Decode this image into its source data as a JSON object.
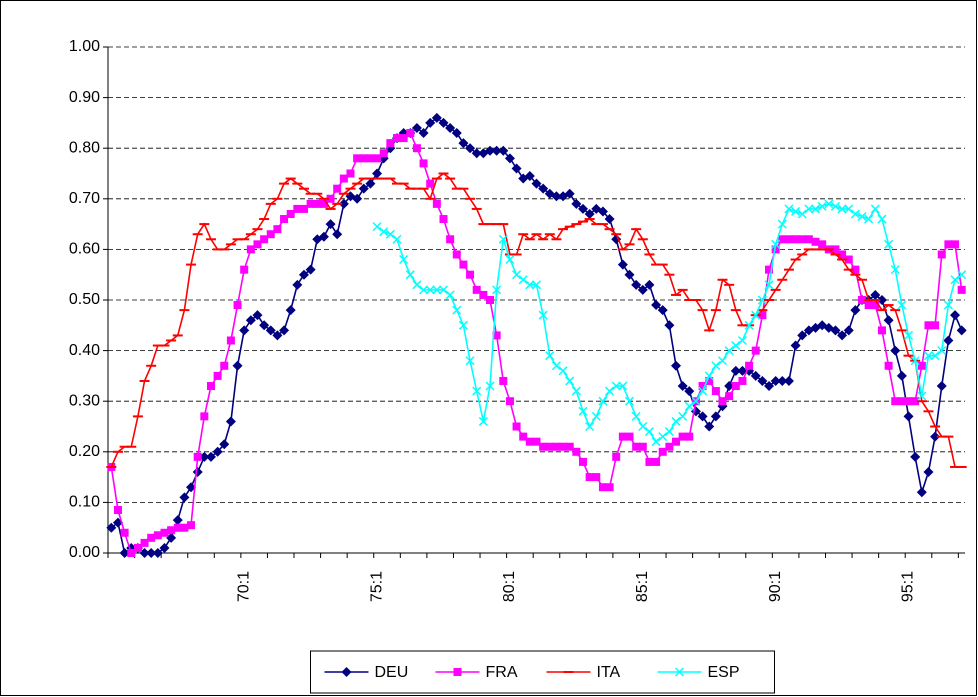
{
  "chart_data": {
    "type": "line",
    "categories": [
      null,
      null,
      null,
      null,
      null,
      null,
      null,
      null,
      null,
      null,
      null,
      null,
      null,
      null,
      null,
      null,
      null,
      null,
      null,
      null,
      "70:1",
      null,
      null,
      null,
      null,
      null,
      null,
      null,
      null,
      null,
      null,
      null,
      null,
      null,
      null,
      null,
      null,
      null,
      null,
      null,
      "75:1",
      null,
      null,
      null,
      null,
      null,
      null,
      null,
      null,
      null,
      null,
      null,
      null,
      null,
      null,
      null,
      null,
      null,
      null,
      null,
      "80:1",
      null,
      null,
      null,
      null,
      null,
      null,
      null,
      null,
      null,
      null,
      null,
      null,
      null,
      null,
      null,
      null,
      null,
      null,
      null,
      "85:1",
      null,
      null,
      null,
      null,
      null,
      null,
      null,
      null,
      null,
      null,
      null,
      null,
      null,
      null,
      null,
      null,
      null,
      null,
      null,
      "90:1",
      null,
      null,
      null,
      null,
      null,
      null,
      null,
      null,
      null,
      null,
      null,
      null,
      null,
      null,
      null,
      null,
      null,
      null,
      null,
      "95:1",
      null,
      null,
      null,
      null,
      null,
      null,
      null,
      null
    ],
    "series": [
      {
        "name": "DEU",
        "color": "#000080",
        "marker": "diamond",
        "values": [
          0.05,
          0.06,
          0.0,
          0.01,
          0.01,
          0.0,
          0.0,
          0.0,
          0.01,
          0.03,
          0.065,
          0.11,
          0.13,
          0.16,
          0.19,
          0.19,
          0.2,
          0.215,
          0.26,
          0.37,
          0.44,
          0.46,
          0.47,
          0.45,
          0.44,
          0.43,
          0.44,
          0.48,
          0.53,
          0.55,
          0.56,
          0.62,
          0.625,
          0.65,
          0.63,
          0.69,
          0.705,
          0.7,
          0.72,
          0.73,
          0.75,
          0.78,
          0.8,
          0.82,
          0.83,
          0.83,
          0.84,
          0.83,
          0.85,
          0.86,
          0.85,
          0.84,
          0.83,
          0.81,
          0.8,
          0.79,
          0.79,
          0.795,
          0.795,
          0.795,
          0.78,
          0.76,
          0.74,
          0.745,
          0.73,
          0.72,
          0.71,
          0.705,
          0.705,
          0.71,
          0.69,
          0.68,
          0.67,
          0.68,
          0.675,
          0.66,
          0.62,
          0.57,
          0.55,
          0.53,
          0.52,
          0.53,
          0.49,
          0.48,
          0.45,
          0.37,
          0.33,
          0.32,
          0.28,
          0.27,
          0.25,
          0.27,
          0.29,
          0.33,
          0.36,
          0.36,
          0.36,
          0.35,
          0.34,
          0.33,
          0.34,
          0.34,
          0.34,
          0.41,
          0.43,
          0.44,
          0.445,
          0.45,
          0.445,
          0.44,
          0.43,
          0.44,
          0.48,
          0.5,
          0.5,
          0.51,
          0.5,
          0.46,
          0.4,
          0.35,
          0.27,
          0.19,
          0.12,
          0.16,
          0.23,
          0.33,
          0.42,
          0.47,
          0.44
        ]
      },
      {
        "name": "FRA",
        "color": "#ff00ff",
        "marker": "square",
        "values": [
          0.17,
          0.085,
          0.04,
          0.0,
          0.01,
          0.02,
          0.03,
          0.035,
          0.04,
          0.045,
          0.05,
          0.05,
          0.055,
          0.19,
          0.27,
          0.33,
          0.35,
          0.37,
          0.42,
          0.49,
          0.56,
          0.6,
          0.61,
          0.62,
          0.63,
          0.64,
          0.66,
          0.67,
          0.68,
          0.68,
          0.69,
          0.69,
          0.69,
          0.7,
          0.72,
          0.74,
          0.75,
          0.78,
          0.78,
          0.78,
          0.78,
          0.79,
          0.81,
          0.82,
          0.82,
          0.83,
          0.8,
          0.77,
          0.73,
          0.69,
          0.66,
          0.62,
          0.59,
          0.57,
          0.55,
          0.52,
          0.51,
          0.5,
          0.43,
          0.34,
          0.3,
          0.25,
          0.23,
          0.22,
          0.22,
          0.21,
          0.21,
          0.21,
          0.21,
          0.21,
          0.2,
          0.18,
          0.15,
          0.15,
          0.13,
          0.13,
          0.19,
          0.23,
          0.23,
          0.21,
          0.21,
          0.18,
          0.18,
          0.2,
          0.21,
          0.22,
          0.23,
          0.23,
          0.3,
          0.33,
          0.34,
          0.32,
          0.3,
          0.31,
          0.33,
          0.34,
          0.37,
          0.4,
          0.47,
          0.56,
          0.6,
          0.62,
          0.62,
          0.62,
          0.62,
          0.62,
          0.615,
          0.61,
          0.6,
          0.6,
          0.59,
          0.58,
          0.56,
          0.5,
          0.49,
          0.49,
          0.44,
          0.37,
          0.3,
          0.3,
          0.3,
          0.3,
          0.37,
          0.45,
          0.45,
          0.59,
          0.61,
          0.61,
          0.52
        ]
      },
      {
        "name": "ITA",
        "color": "#ff0000",
        "marker": "dash",
        "values": [
          0.17,
          0.2,
          0.21,
          0.21,
          0.27,
          0.34,
          0.37,
          0.41,
          0.41,
          0.42,
          0.43,
          0.48,
          0.57,
          0.63,
          0.65,
          0.62,
          0.6,
          0.6,
          0.61,
          0.62,
          0.62,
          0.63,
          0.64,
          0.66,
          0.69,
          0.7,
          0.73,
          0.74,
          0.73,
          0.72,
          0.71,
          0.71,
          0.7,
          0.68,
          0.69,
          0.71,
          0.72,
          0.73,
          0.74,
          0.74,
          0.74,
          0.74,
          0.74,
          0.73,
          0.73,
          0.72,
          0.72,
          0.72,
          0.7,
          0.74,
          0.75,
          0.74,
          0.72,
          0.72,
          0.7,
          0.68,
          0.65,
          0.65,
          0.65,
          0.65,
          0.59,
          0.59,
          0.63,
          0.62,
          0.63,
          0.62,
          0.63,
          0.62,
          0.64,
          0.645,
          0.65,
          0.655,
          0.66,
          0.65,
          0.65,
          0.64,
          0.63,
          0.6,
          0.61,
          0.64,
          0.62,
          0.59,
          0.57,
          0.57,
          0.55,
          0.51,
          0.52,
          0.5,
          0.5,
          0.48,
          0.44,
          0.48,
          0.54,
          0.53,
          0.48,
          0.45,
          0.45,
          0.47,
          0.48,
          0.5,
          0.52,
          0.54,
          0.56,
          0.58,
          0.59,
          0.6,
          0.6,
          0.6,
          0.6,
          0.59,
          0.58,
          0.56,
          0.55,
          0.54,
          0.5,
          0.5,
          0.48,
          0.49,
          0.48,
          0.44,
          0.39,
          0.38,
          0.3,
          0.28,
          0.25,
          0.23,
          0.23,
          0.17,
          0.17
        ]
      },
      {
        "name": "ESP",
        "color": "#00ffff",
        "marker": "x",
        "values": [
          null,
          null,
          null,
          null,
          null,
          null,
          null,
          null,
          null,
          null,
          null,
          null,
          null,
          null,
          null,
          null,
          null,
          null,
          null,
          null,
          null,
          null,
          null,
          null,
          null,
          null,
          null,
          null,
          null,
          null,
          null,
          null,
          null,
          null,
          null,
          null,
          null,
          null,
          null,
          null,
          0.645,
          0.635,
          0.63,
          0.62,
          0.58,
          0.55,
          0.53,
          0.52,
          0.52,
          0.52,
          0.52,
          0.51,
          0.48,
          0.45,
          0.38,
          0.32,
          0.26,
          0.33,
          0.52,
          0.62,
          0.58,
          0.55,
          0.54,
          0.53,
          0.53,
          0.47,
          0.39,
          0.37,
          0.36,
          0.34,
          0.32,
          0.28,
          0.25,
          0.27,
          0.3,
          0.32,
          0.33,
          0.33,
          0.3,
          0.27,
          0.25,
          0.24,
          0.22,
          0.23,
          0.24,
          0.26,
          0.27,
          0.29,
          0.3,
          0.32,
          0.35,
          0.37,
          0.38,
          0.4,
          0.41,
          0.42,
          0.45,
          0.47,
          0.5,
          0.53,
          0.61,
          0.65,
          0.68,
          0.675,
          0.67,
          0.68,
          0.68,
          0.685,
          0.69,
          0.685,
          0.68,
          0.68,
          0.67,
          0.665,
          0.66,
          0.68,
          0.66,
          0.61,
          0.56,
          0.49,
          0.43,
          0.38,
          0.31,
          0.39,
          0.39,
          0.4,
          0.49,
          0.54,
          0.55
        ]
      }
    ],
    "ylim": [
      0,
      1
    ],
    "yticks": [
      {
        "value": 0,
        "label": "0.00"
      },
      {
        "value": 0.1,
        "label": "0.10"
      },
      {
        "value": 0.2,
        "label": "0.20"
      },
      {
        "value": 0.3,
        "label": "0.30"
      },
      {
        "value": 0.4,
        "label": "0.40"
      },
      {
        "value": 0.5,
        "label": "0.50"
      },
      {
        "value": 0.6,
        "label": "0.60"
      },
      {
        "value": 0.7,
        "label": "0.70"
      },
      {
        "value": 0.8,
        "label": "0.80"
      },
      {
        "value": 0.9,
        "label": "0.90"
      },
      {
        "value": 1,
        "label": "1.00"
      }
    ],
    "grid": true,
    "legend": "bottom"
  }
}
